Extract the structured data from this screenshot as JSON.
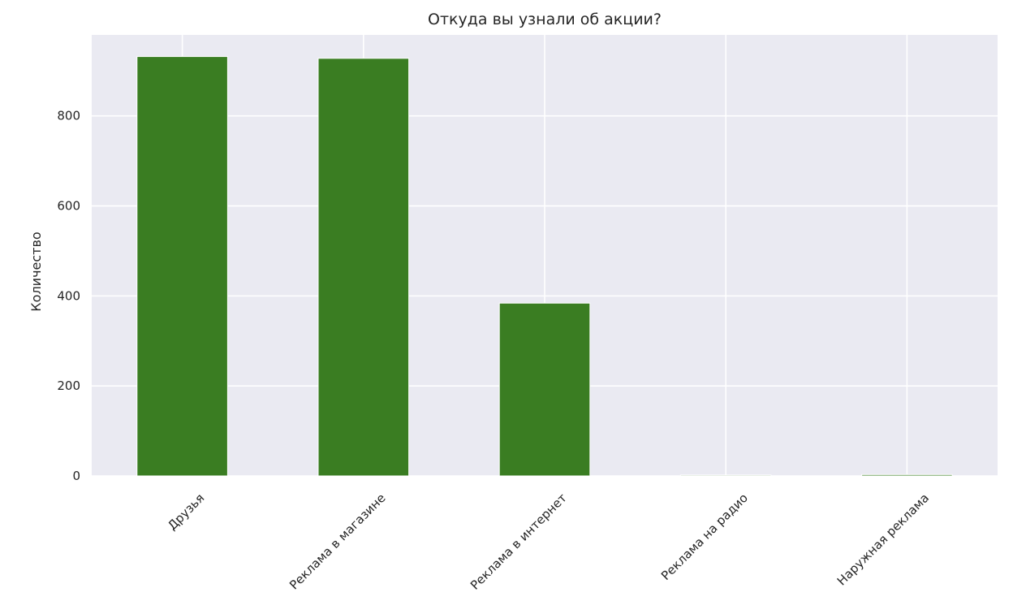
{
  "chart_data": {
    "type": "bar",
    "title": "Откуда вы узнали об акции?",
    "xlabel": "",
    "ylabel": "Количество",
    "categories": [
      "Друзья",
      "Реклама в магазине",
      "Реклама в интернет",
      "Реклама на радио",
      "Наружная реклама"
    ],
    "values": [
      932,
      928,
      384,
      2,
      3
    ],
    "ylim": [
      0,
      980
    ],
    "yticks": [
      0,
      200,
      400,
      600,
      800
    ],
    "grid": true,
    "colors": {
      "bar": "#3a7d22",
      "plot_background": "#eaeaf2",
      "grid": "#ffffff"
    }
  }
}
